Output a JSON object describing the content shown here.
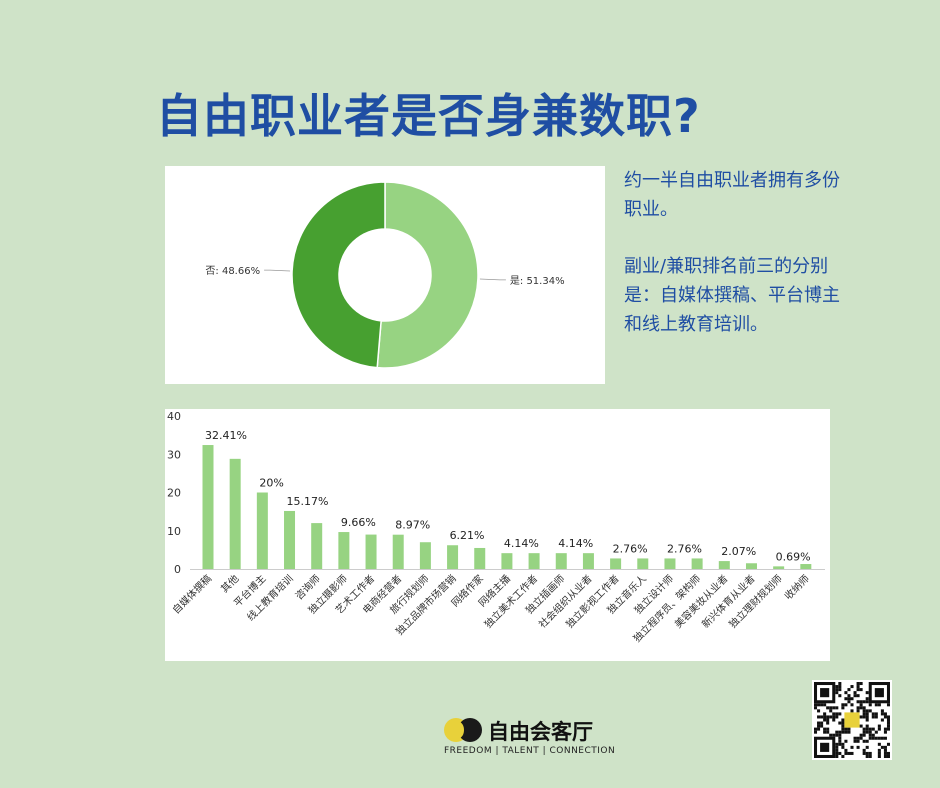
{
  "title": "自由职业者是否身兼数职?",
  "side_text": {
    "para1": "约一半自由职业者拥有多份职业。",
    "para2": "副业/兼职排名前三的分别是：自媒体撰稿、平台博主和线上教育培训。"
  },
  "logo": {
    "name": "自由会客厅",
    "tagline": "FREEDOM | TALENT | CONNECTION"
  },
  "chart_data": [
    {
      "type": "pie",
      "variant": "donut",
      "slices": [
        {
          "label": "是",
          "value": 51.34,
          "display": "是: 51.34%",
          "color": "#97d382"
        },
        {
          "label": "否",
          "value": 48.66,
          "display": "否: 48.66%",
          "color": "#47a030"
        }
      ]
    },
    {
      "type": "bar",
      "ylim": [
        0,
        40
      ],
      "yticks": [
        0,
        10,
        20,
        30,
        40
      ],
      "grid": false,
      "bar_color": "#97d382",
      "categories": [
        "自媒体撰稿",
        "其他",
        "平台博主",
        "线上教育培训",
        "咨询师",
        "独立摄影师",
        "艺术工作者",
        "电商经营者",
        "旅行规划师",
        "独立品牌市场营销",
        "网络作家",
        "网络主播",
        "独立美术工作者",
        "独立插画师",
        "社会组织从业者",
        "独立影视工作者",
        "独立音乐人",
        "独立设计师",
        "独立程序员、架构师",
        "美容美妆从业者",
        "新兴体育从业者",
        "独立理财规划师",
        "收纳师"
      ],
      "values": [
        32.41,
        28.8,
        20,
        15.17,
        12,
        9.66,
        9,
        8.97,
        7,
        6.21,
        5.5,
        4.14,
        4.14,
        4.14,
        4.14,
        2.76,
        2.76,
        2.76,
        2.76,
        2.07,
        1.5,
        0.69,
        1.3
      ],
      "data_labels": [
        "32.41%",
        "",
        "20%",
        "15.17%",
        "",
        "9.66%",
        "",
        "8.97%",
        "",
        "6.21%",
        "",
        "4.14%",
        "",
        "4.14%",
        "",
        "2.76%",
        "",
        "2.76%",
        "",
        "2.07%",
        "",
        "0.69%",
        ""
      ]
    }
  ]
}
